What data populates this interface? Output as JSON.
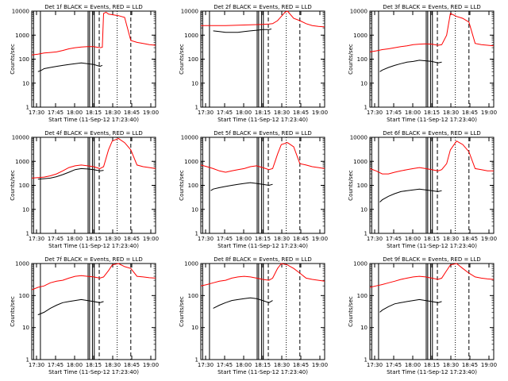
{
  "common": {
    "xlabel": "Start Time (11-Sep-12 17:23:40)",
    "ylabel": "Counts/sec",
    "x_tick_labels": [
      "17:30",
      "17:45",
      "18:00",
      "18:15",
      "18:30",
      "18:45",
      "19:00"
    ],
    "y_tick_labels": [
      "1",
      "10",
      "100",
      "1000",
      "10000"
    ],
    "colors": {
      "events": "#000000",
      "lld": "#ff0000"
    }
  },
  "chart_data": [
    {
      "type": "line",
      "title": "Det 1f BLACK = Events, RED = LLD",
      "xlabel": "Start Time (11-Sep-12 17:23:40)",
      "ylabel": "Counts/sec",
      "x_unit": "minutes after 17:23:40",
      "xlim": [
        0,
        100
      ],
      "ylim": [
        1,
        10000
      ],
      "yscale": "log",
      "series": [
        {
          "name": "LLD",
          "color": "#ff0000",
          "x": [
            0,
            5,
            10,
            15,
            20,
            25,
            30,
            35,
            40,
            45,
            50,
            55,
            57,
            58,
            60,
            62,
            70,
            75,
            80,
            85,
            90,
            95,
            100
          ],
          "y": [
            150,
            160,
            180,
            190,
            200,
            230,
            270,
            300,
            320,
            330,
            330,
            300,
            310,
            8000,
            9000,
            7500,
            6500,
            5500,
            600,
            500,
            450,
            400,
            380
          ]
        },
        {
          "name": "Events",
          "color": "#000000",
          "x": [
            5,
            8,
            10,
            15,
            20,
            25,
            30,
            35,
            40,
            45,
            50,
            55,
            57
          ],
          "y": [
            30,
            35,
            40,
            45,
            50,
            55,
            60,
            65,
            70,
            65,
            60,
            50,
            55
          ]
        }
      ]
    },
    {
      "type": "line",
      "title": "Det 2f BLACK = Events, RED = LLD",
      "xlabel": "Start Time (11-Sep-12 17:23:40)",
      "ylabel": "Counts/sec",
      "x_unit": "minutes after 17:23:40",
      "xlim": [
        0,
        100
      ],
      "ylim": [
        1,
        10000
      ],
      "yscale": "log",
      "series": [
        {
          "name": "LLD",
          "color": "#ff0000",
          "x": [
            0,
            10,
            20,
            30,
            40,
            50,
            55,
            58,
            62,
            65,
            68,
            70,
            75,
            80,
            85,
            90,
            95,
            100
          ],
          "y": [
            2500,
            2500,
            2500,
            2600,
            2700,
            2800,
            2900,
            3000,
            4000,
            6000,
            9000,
            10000,
            5000,
            4000,
            3000,
            2500,
            2300,
            2200
          ]
        },
        {
          "name": "Events",
          "color": "#000000",
          "x": [
            10,
            15,
            20,
            25,
            30,
            35,
            40,
            45,
            50,
            55,
            57
          ],
          "y": [
            1500,
            1400,
            1300,
            1300,
            1300,
            1400,
            1500,
            1600,
            1700,
            1700,
            1800
          ]
        }
      ]
    },
    {
      "type": "line",
      "title": "Det 3f BLACK = Events, RED = LLD",
      "xlabel": "Start Time (11-Sep-12 17:23:40)",
      "ylabel": "Counts/sec",
      "x_unit": "minutes after 17:23:40",
      "xlim": [
        0,
        100
      ],
      "ylim": [
        1,
        10000
      ],
      "yscale": "log",
      "series": [
        {
          "name": "LLD",
          "color": "#ff0000",
          "x": [
            0,
            5,
            10,
            15,
            20,
            25,
            30,
            35,
            40,
            45,
            50,
            55,
            58,
            62,
            65,
            70,
            75,
            80,
            85,
            90,
            95,
            100
          ],
          "y": [
            200,
            220,
            250,
            270,
            300,
            330,
            360,
            400,
            420,
            430,
            420,
            380,
            400,
            1000,
            8000,
            6000,
            5000,
            3500,
            450,
            400,
            380,
            360
          ]
        },
        {
          "name": "Events",
          "color": "#000000",
          "x": [
            8,
            10,
            15,
            20,
            25,
            30,
            35,
            40,
            45,
            50,
            55,
            58
          ],
          "y": [
            30,
            35,
            45,
            55,
            65,
            75,
            80,
            90,
            85,
            80,
            70,
            75
          ]
        }
      ]
    },
    {
      "type": "line",
      "title": "Det 4f BLACK = Events, RED = LLD",
      "xlabel": "Start Time (11-Sep-12 17:23:40)",
      "ylabel": "Counts/sec",
      "x_unit": "minutes after 17:23:40",
      "xlim": [
        0,
        100
      ],
      "ylim": [
        1,
        10000
      ],
      "yscale": "log",
      "series": [
        {
          "name": "LLD",
          "color": "#ff0000",
          "x": [
            0,
            5,
            10,
            15,
            20,
            25,
            30,
            35,
            40,
            45,
            50,
            55,
            58,
            62,
            65,
            70,
            75,
            80,
            85,
            90,
            95,
            100
          ],
          "y": [
            200,
            210,
            220,
            250,
            300,
            400,
            550,
            650,
            700,
            650,
            600,
            500,
            600,
            3000,
            7000,
            9000,
            6000,
            3000,
            700,
            600,
            550,
            500
          ]
        },
        {
          "name": "Events",
          "color": "#000000",
          "x": [
            5,
            10,
            15,
            20,
            25,
            30,
            35,
            40,
            45,
            50,
            55,
            58
          ],
          "y": [
            180,
            190,
            200,
            230,
            280,
            350,
            450,
            500,
            480,
            450,
            400,
            420
          ]
        }
      ]
    },
    {
      "type": "line",
      "title": "Det 5f BLACK = Events, RED = LLD",
      "xlabel": "Start Time (11-Sep-12 17:23:40)",
      "ylabel": "Counts/sec",
      "x_unit": "minutes after 17:23:40",
      "xlim": [
        0,
        100
      ],
      "ylim": [
        1,
        10000
      ],
      "yscale": "log",
      "series": [
        {
          "name": "LLD",
          "color": "#ff0000",
          "x": [
            0,
            5,
            10,
            15,
            20,
            25,
            30,
            35,
            40,
            45,
            50,
            55,
            58,
            60,
            62,
            65,
            70,
            75,
            80,
            85,
            90,
            95,
            100
          ],
          "y": [
            700,
            600,
            500,
            400,
            350,
            400,
            450,
            500,
            600,
            650,
            550,
            450,
            500,
            1000,
            2000,
            5000,
            6000,
            4000,
            800,
            700,
            600,
            550,
            500
          ]
        },
        {
          "name": "Events",
          "color": "#000000",
          "x": [
            8,
            10,
            15,
            20,
            25,
            30,
            35,
            40,
            45,
            50,
            55,
            58
          ],
          "y": [
            60,
            70,
            80,
            90,
            100,
            110,
            120,
            130,
            120,
            110,
            100,
            110
          ]
        }
      ]
    },
    {
      "type": "line",
      "title": "Det 6f BLACK = Events, RED = LLD",
      "xlabel": "Start Time (11-Sep-12 17:23:40)",
      "ylabel": "Counts/sec",
      "x_unit": "minutes after 17:23:40",
      "xlim": [
        0,
        100
      ],
      "ylim": [
        1,
        10000
      ],
      "yscale": "log",
      "series": [
        {
          "name": "LLD",
          "color": "#ff0000",
          "x": [
            0,
            5,
            10,
            15,
            20,
            25,
            30,
            35,
            40,
            45,
            50,
            55,
            58,
            62,
            65,
            70,
            75,
            80,
            85,
            90,
            95,
            100
          ],
          "y": [
            500,
            400,
            300,
            300,
            350,
            400,
            450,
            500,
            550,
            500,
            450,
            400,
            450,
            800,
            3000,
            7000,
            5000,
            2500,
            500,
            450,
            400,
            400
          ]
        },
        {
          "name": "Events",
          "color": "#000000",
          "x": [
            8,
            10,
            15,
            20,
            25,
            30,
            35,
            40,
            45,
            50,
            55,
            58
          ],
          "y": [
            20,
            25,
            35,
            45,
            55,
            60,
            65,
            70,
            65,
            60,
            55,
            60
          ]
        }
      ]
    },
    {
      "type": "line",
      "title": "Det 7f BLACK = Events, RED = LLD",
      "xlabel": "Start Time (11-Sep-12 17:23:40)",
      "ylabel": "Counts/sec",
      "x_unit": "minutes after 17:23:40",
      "xlim": [
        0,
        100
      ],
      "ylim": [
        1,
        1000
      ],
      "yscale": "log",
      "series": [
        {
          "name": "LLD",
          "color": "#ff0000",
          "x": [
            0,
            5,
            10,
            15,
            20,
            25,
            30,
            35,
            40,
            45,
            50,
            55,
            58,
            62,
            65,
            70,
            75,
            80,
            85,
            90,
            95,
            100
          ],
          "y": [
            150,
            180,
            200,
            250,
            280,
            300,
            350,
            400,
            420,
            400,
            380,
            350,
            380,
            600,
            900,
            1000,
            800,
            700,
            400,
            380,
            360,
            350
          ]
        },
        {
          "name": "Events",
          "color": "#000000",
          "x": [
            5,
            10,
            15,
            20,
            25,
            30,
            35,
            40,
            45,
            50,
            55,
            58
          ],
          "y": [
            25,
            30,
            40,
            50,
            60,
            65,
            70,
            75,
            70,
            65,
            60,
            65
          ]
        }
      ]
    },
    {
      "type": "line",
      "title": "Det 8f BLACK = Events, RED = LLD",
      "xlabel": "Start Time (11-Sep-12 17:23:40)",
      "ylabel": "Counts/sec",
      "x_unit": "minutes after 17:23:40",
      "xlim": [
        0,
        100
      ],
      "ylim": [
        1,
        1000
      ],
      "yscale": "log",
      "series": [
        {
          "name": "LLD",
          "color": "#ff0000",
          "x": [
            0,
            5,
            10,
            15,
            20,
            25,
            30,
            35,
            40,
            45,
            50,
            55,
            58,
            62,
            65,
            70,
            75,
            80,
            85,
            90,
            95,
            100
          ],
          "y": [
            200,
            220,
            250,
            280,
            300,
            350,
            380,
            400,
            380,
            350,
            320,
            300,
            350,
            700,
            1000,
            900,
            700,
            500,
            350,
            320,
            300,
            280
          ]
        },
        {
          "name": "Events",
          "color": "#000000",
          "x": [
            10,
            15,
            20,
            25,
            30,
            35,
            40,
            45,
            50,
            55,
            58
          ],
          "y": [
            40,
            50,
            60,
            70,
            75,
            80,
            85,
            80,
            70,
            60,
            70
          ]
        }
      ]
    },
    {
      "type": "line",
      "title": "Det 9f BLACK = Events, RED = LLD",
      "xlabel": "Start Time (11-Sep-12 17:23:40)",
      "ylabel": "Counts/sec",
      "x_unit": "minutes after 17:23:40",
      "xlim": [
        0,
        100
      ],
      "ylim": [
        1,
        1000
      ],
      "yscale": "log",
      "series": [
        {
          "name": "LLD",
          "color": "#ff0000",
          "x": [
            0,
            5,
            10,
            15,
            20,
            25,
            30,
            35,
            40,
            45,
            50,
            55,
            58,
            62,
            65,
            70,
            75,
            80,
            85,
            90,
            95,
            100
          ],
          "y": [
            180,
            200,
            220,
            250,
            280,
            320,
            350,
            380,
            400,
            380,
            350,
            320,
            350,
            600,
            900,
            1000,
            700,
            500,
            380,
            350,
            330,
            320
          ]
        },
        {
          "name": "Events",
          "color": "#000000",
          "x": [
            8,
            10,
            15,
            20,
            25,
            30,
            35,
            40,
            45,
            50,
            55,
            58
          ],
          "y": [
            30,
            35,
            45,
            55,
            60,
            65,
            70,
            75,
            70,
            65,
            60,
            65
          ]
        }
      ]
    }
  ]
}
